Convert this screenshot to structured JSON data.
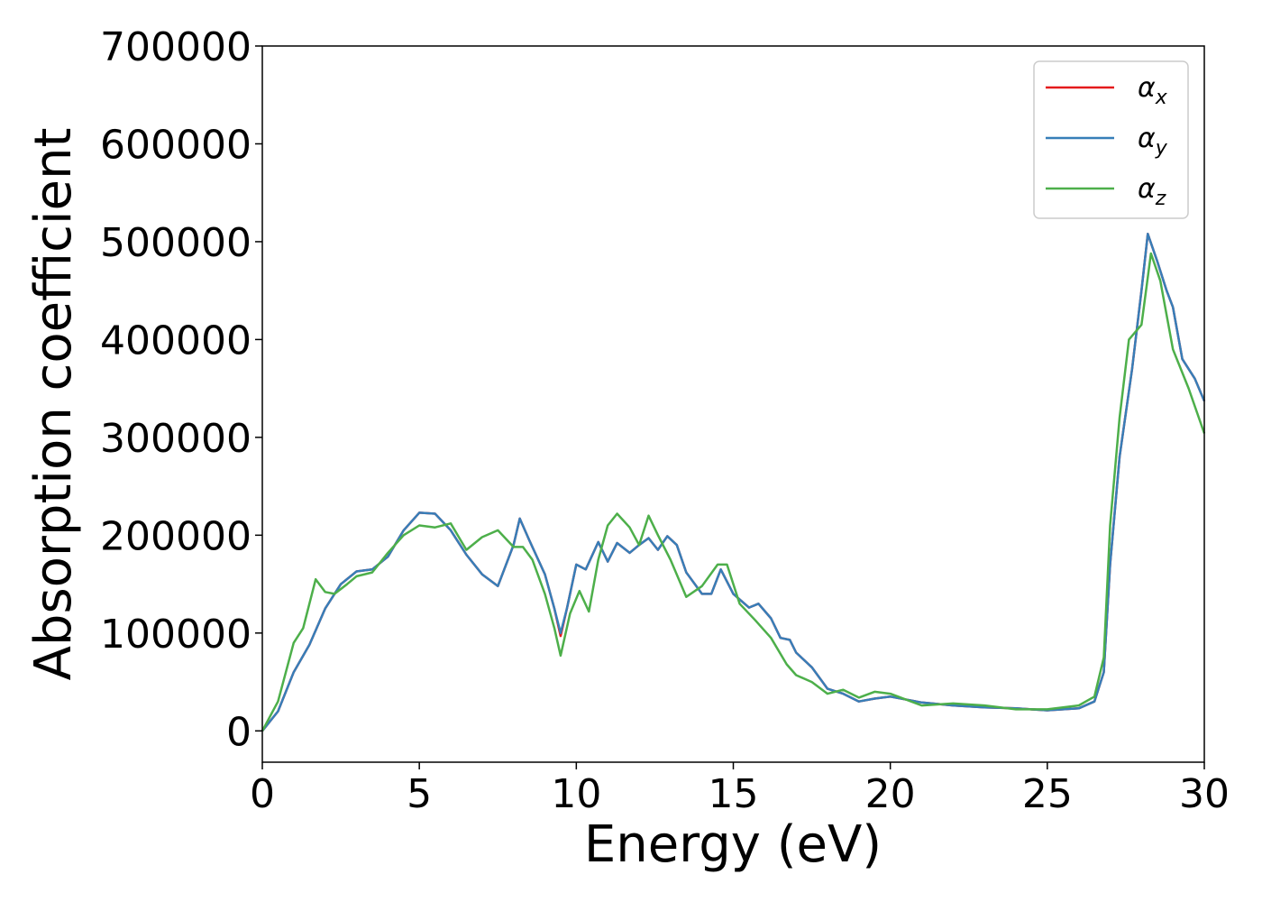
{
  "chart_data": {
    "type": "line",
    "title": "",
    "xlabel": "Energy (eV)",
    "ylabel": "Absorption coefficient",
    "xlim": [
      0,
      30
    ],
    "ylim": [
      -32000,
      700000
    ],
    "xticks": [
      0,
      5,
      10,
      15,
      20,
      25,
      30
    ],
    "yticks": [
      0,
      100000,
      200000,
      300000,
      400000,
      500000,
      600000,
      700000
    ],
    "xtick_labels": [
      "0",
      "5",
      "10",
      "15",
      "20",
      "25",
      "30"
    ],
    "ytick_labels": [
      "0",
      "100000",
      "200000",
      "300000",
      "400000",
      "500000",
      "600000",
      "700000"
    ],
    "grid": false,
    "legend_position": "top-right",
    "series": [
      {
        "name": "α_x",
        "symbol": "α",
        "subscript": "x",
        "color": "#e41a1c",
        "points": [
          [
            0,
            0
          ],
          [
            0.5,
            20000
          ],
          [
            1,
            60000
          ],
          [
            1.5,
            88000
          ],
          [
            2,
            125000
          ],
          [
            2.5,
            150000
          ],
          [
            3,
            163000
          ],
          [
            3.5,
            165000
          ],
          [
            4,
            178000
          ],
          [
            4.5,
            205000
          ],
          [
            5,
            223000
          ],
          [
            5.5,
            222000
          ],
          [
            6,
            205000
          ],
          [
            6.5,
            180000
          ],
          [
            7,
            160000
          ],
          [
            7.5,
            148000
          ],
          [
            8,
            190000
          ],
          [
            8.2,
            217000
          ],
          [
            8.5,
            195000
          ],
          [
            9,
            160000
          ],
          [
            9.3,
            125000
          ],
          [
            9.5,
            97000
          ],
          [
            9.7,
            125000
          ],
          [
            10,
            170000
          ],
          [
            10.3,
            165000
          ],
          [
            10.7,
            193000
          ],
          [
            11,
            173000
          ],
          [
            11.3,
            192000
          ],
          [
            11.7,
            182000
          ],
          [
            12,
            190000
          ],
          [
            12.3,
            197000
          ],
          [
            12.6,
            185000
          ],
          [
            12.9,
            199000
          ],
          [
            13.2,
            190000
          ],
          [
            13.5,
            162000
          ],
          [
            14,
            140000
          ],
          [
            14.3,
            140000
          ],
          [
            14.6,
            165000
          ],
          [
            15,
            140000
          ],
          [
            15.5,
            126000
          ],
          [
            15.8,
            130000
          ],
          [
            16.2,
            115000
          ],
          [
            16.5,
            95000
          ],
          [
            16.8,
            93000
          ],
          [
            17,
            80000
          ],
          [
            17.5,
            65000
          ],
          [
            18,
            43000
          ],
          [
            18.5,
            38000
          ],
          [
            19,
            30000
          ],
          [
            19.5,
            33000
          ],
          [
            20,
            35000
          ],
          [
            21,
            29000
          ],
          [
            22,
            26000
          ],
          [
            23,
            24000
          ],
          [
            24,
            23000
          ],
          [
            25,
            21000
          ],
          [
            26,
            23000
          ],
          [
            26.5,
            30000
          ],
          [
            26.8,
            60000
          ],
          [
            27,
            170000
          ],
          [
            27.3,
            280000
          ],
          [
            27.7,
            370000
          ],
          [
            28,
            450000
          ],
          [
            28.2,
            508000
          ],
          [
            28.5,
            480000
          ],
          [
            28.8,
            450000
          ],
          [
            29,
            433000
          ],
          [
            29.3,
            380000
          ],
          [
            29.7,
            360000
          ],
          [
            30,
            337000
          ]
        ]
      },
      {
        "name": "α_y",
        "symbol": "α",
        "subscript": "y",
        "color": "#377eb8",
        "points": [
          [
            0,
            0
          ],
          [
            0.5,
            20000
          ],
          [
            1,
            60000
          ],
          [
            1.5,
            88000
          ],
          [
            2,
            125000
          ],
          [
            2.5,
            150000
          ],
          [
            3,
            163000
          ],
          [
            3.5,
            165000
          ],
          [
            4,
            178000
          ],
          [
            4.5,
            205000
          ],
          [
            5,
            223000
          ],
          [
            5.5,
            222000
          ],
          [
            6,
            205000
          ],
          [
            6.5,
            180000
          ],
          [
            7,
            160000
          ],
          [
            7.5,
            148000
          ],
          [
            8,
            190000
          ],
          [
            8.2,
            217000
          ],
          [
            8.5,
            195000
          ],
          [
            9,
            160000
          ],
          [
            9.3,
            125000
          ],
          [
            9.5,
            100000
          ],
          [
            9.7,
            125000
          ],
          [
            10,
            170000
          ],
          [
            10.3,
            165000
          ],
          [
            10.7,
            193000
          ],
          [
            11,
            173000
          ],
          [
            11.3,
            192000
          ],
          [
            11.7,
            182000
          ],
          [
            12,
            190000
          ],
          [
            12.3,
            197000
          ],
          [
            12.6,
            185000
          ],
          [
            12.9,
            199000
          ],
          [
            13.2,
            190000
          ],
          [
            13.5,
            162000
          ],
          [
            14,
            140000
          ],
          [
            14.3,
            140000
          ],
          [
            14.6,
            165000
          ],
          [
            15,
            140000
          ],
          [
            15.5,
            126000
          ],
          [
            15.8,
            130000
          ],
          [
            16.2,
            115000
          ],
          [
            16.5,
            95000
          ],
          [
            16.8,
            93000
          ],
          [
            17,
            80000
          ],
          [
            17.5,
            65000
          ],
          [
            18,
            43000
          ],
          [
            18.5,
            38000
          ],
          [
            19,
            30000
          ],
          [
            19.5,
            33000
          ],
          [
            20,
            35000
          ],
          [
            21,
            29000
          ],
          [
            22,
            26000
          ],
          [
            23,
            24000
          ],
          [
            24,
            23000
          ],
          [
            25,
            21000
          ],
          [
            26,
            23000
          ],
          [
            26.5,
            30000
          ],
          [
            26.8,
            60000
          ],
          [
            27,
            170000
          ],
          [
            27.3,
            280000
          ],
          [
            27.7,
            370000
          ],
          [
            28,
            450000
          ],
          [
            28.2,
            508000
          ],
          [
            28.5,
            480000
          ],
          [
            28.8,
            450000
          ],
          [
            29,
            433000
          ],
          [
            29.3,
            380000
          ],
          [
            29.7,
            360000
          ],
          [
            30,
            337000
          ]
        ]
      },
      {
        "name": "α_z",
        "symbol": "α",
        "subscript": "z",
        "color": "#4daf4a",
        "points": [
          [
            0,
            0
          ],
          [
            0.5,
            30000
          ],
          [
            1,
            90000
          ],
          [
            1.3,
            105000
          ],
          [
            1.7,
            155000
          ],
          [
            2,
            142000
          ],
          [
            2.3,
            140000
          ],
          [
            2.7,
            150000
          ],
          [
            3,
            158000
          ],
          [
            3.5,
            162000
          ],
          [
            4,
            182000
          ],
          [
            4.5,
            200000
          ],
          [
            5,
            210000
          ],
          [
            5.5,
            208000
          ],
          [
            6,
            212000
          ],
          [
            6.5,
            185000
          ],
          [
            7,
            198000
          ],
          [
            7.5,
            205000
          ],
          [
            8,
            188000
          ],
          [
            8.3,
            188000
          ],
          [
            8.6,
            175000
          ],
          [
            9,
            140000
          ],
          [
            9.3,
            105000
          ],
          [
            9.5,
            77000
          ],
          [
            9.8,
            120000
          ],
          [
            10.1,
            143000
          ],
          [
            10.4,
            122000
          ],
          [
            10.7,
            175000
          ],
          [
            11,
            210000
          ],
          [
            11.3,
            222000
          ],
          [
            11.7,
            208000
          ],
          [
            12,
            190000
          ],
          [
            12.3,
            220000
          ],
          [
            12.6,
            200000
          ],
          [
            13,
            175000
          ],
          [
            13.5,
            137000
          ],
          [
            14,
            148000
          ],
          [
            14.5,
            170000
          ],
          [
            14.8,
            170000
          ],
          [
            15.2,
            130000
          ],
          [
            15.7,
            113000
          ],
          [
            16.2,
            95000
          ],
          [
            16.7,
            68000
          ],
          [
            17,
            57000
          ],
          [
            17.5,
            50000
          ],
          [
            18,
            38000
          ],
          [
            18.5,
            42000
          ],
          [
            19,
            34000
          ],
          [
            19.5,
            40000
          ],
          [
            20,
            38000
          ],
          [
            21,
            26000
          ],
          [
            22,
            28000
          ],
          [
            23,
            26000
          ],
          [
            24,
            22000
          ],
          [
            25,
            22000
          ],
          [
            26,
            26000
          ],
          [
            26.5,
            35000
          ],
          [
            26.8,
            75000
          ],
          [
            27,
            210000
          ],
          [
            27.3,
            320000
          ],
          [
            27.6,
            400000
          ],
          [
            28,
            415000
          ],
          [
            28.3,
            488000
          ],
          [
            28.6,
            460000
          ],
          [
            29,
            390000
          ],
          [
            29.5,
            350000
          ],
          [
            30,
            304000
          ]
        ]
      }
    ]
  }
}
